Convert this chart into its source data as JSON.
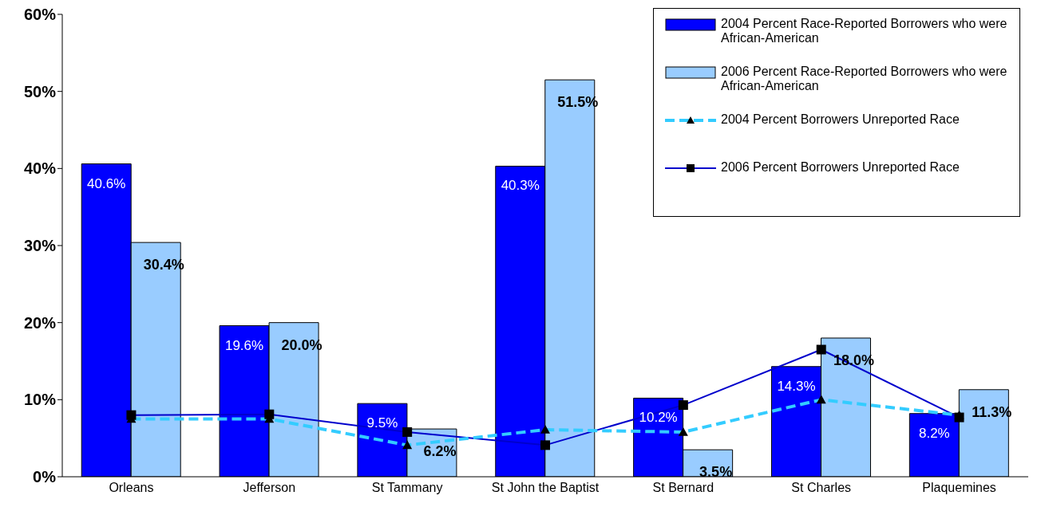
{
  "chart_data": {
    "type": "bar",
    "categories": [
      "Orleans",
      "Jefferson",
      "St Tammany",
      "St John the Baptist",
      "St Bernard",
      "St Charles",
      "Plaquemines"
    ],
    "series": [
      {
        "name": "2004 Percent Race-Reported Borrowers who were African-American",
        "color": "#0000ff",
        "values": [
          40.6,
          19.6,
          9.5,
          40.3,
          10.2,
          14.3,
          8.2
        ],
        "value_labels": [
          "40.6%",
          "19.6%",
          "9.5%",
          "40.3%",
          "10.2%",
          "14.3%",
          "8.2%"
        ]
      },
      {
        "name": "2006 Percent Race-Reported Borrowers who were African-American",
        "color": "#99ccff",
        "values": [
          30.4,
          20.0,
          6.2,
          51.5,
          3.5,
          18.0,
          11.3
        ],
        "value_labels": [
          "30.4%",
          "20.0%",
          "6.2%",
          "51.5%",
          "3.5%",
          "18.0%",
          "11.3%"
        ]
      },
      {
        "name": "2004 Percent Borrowers Unreported Race",
        "type": "line",
        "color": "#33ccff",
        "line_style": "dashed",
        "marker": "triangle",
        "values": [
          7.5,
          7.5,
          4.1,
          6.1,
          5.8,
          10.0,
          8.0
        ]
      },
      {
        "name": "2006 Percent Borrowers Unreported Race",
        "type": "line",
        "color": "#0000cc",
        "line_style": "solid",
        "marker": "square",
        "values": [
          8.0,
          8.1,
          5.8,
          4.1,
          9.3,
          16.5,
          7.7
        ]
      }
    ],
    "ylim": [
      0,
      60
    ],
    "yticks": [
      {
        "value": 0,
        "label": "0%"
      },
      {
        "value": 10,
        "label": "10%"
      },
      {
        "value": 20,
        "label": "20%"
      },
      {
        "value": 30,
        "label": "30%"
      },
      {
        "value": 40,
        "label": "40%"
      },
      {
        "value": 50,
        "label": "50%"
      },
      {
        "value": 60,
        "label": "60%"
      }
    ],
    "grid": false,
    "legend": "top right"
  }
}
